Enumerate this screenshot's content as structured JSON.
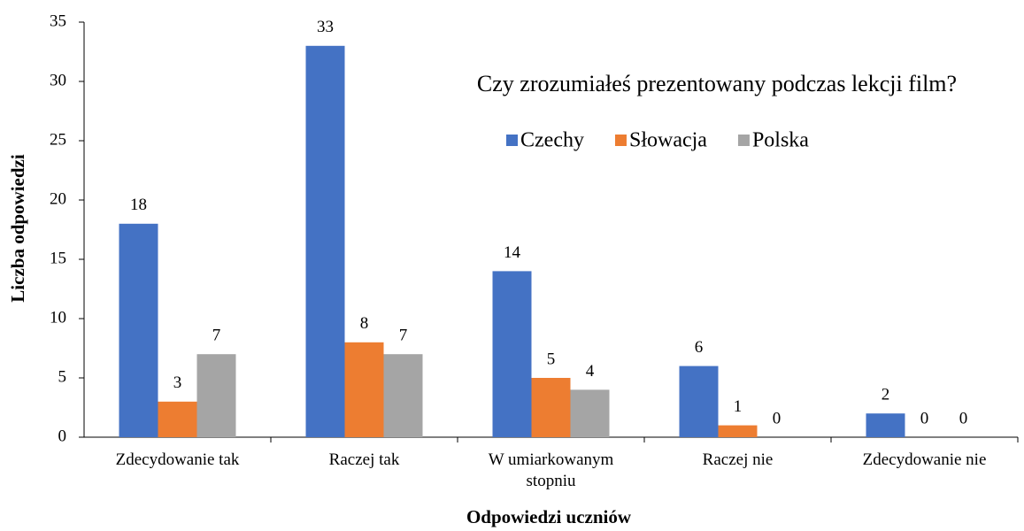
{
  "chart_data": {
    "type": "bar",
    "title": "Czy zrozumiałeś prezentowany podczas lekcji film?",
    "x_label": "Odpowiedzi uczniów",
    "y_label": "Liczba odpowiedzi",
    "categories": [
      "Zdecydowanie tak",
      "Raczej tak",
      "W umiarkowanym stopniu",
      "Raczej nie",
      "Zdecydowanie nie"
    ],
    "series": [
      {
        "name": "Czechy",
        "color": "#4472c4",
        "values": [
          18,
          33,
          14,
          6,
          2
        ]
      },
      {
        "name": "Słowacja",
        "color": "#ed7d31",
        "values": [
          3,
          8,
          5,
          1,
          0
        ]
      },
      {
        "name": "Polska",
        "color": "#a5a5a5",
        "values": [
          7,
          7,
          4,
          0,
          0
        ]
      }
    ],
    "ylim": [
      0,
      35
    ],
    "yticks": [
      0,
      5,
      10,
      15,
      20,
      25,
      30,
      35
    ],
    "grid": false
  }
}
